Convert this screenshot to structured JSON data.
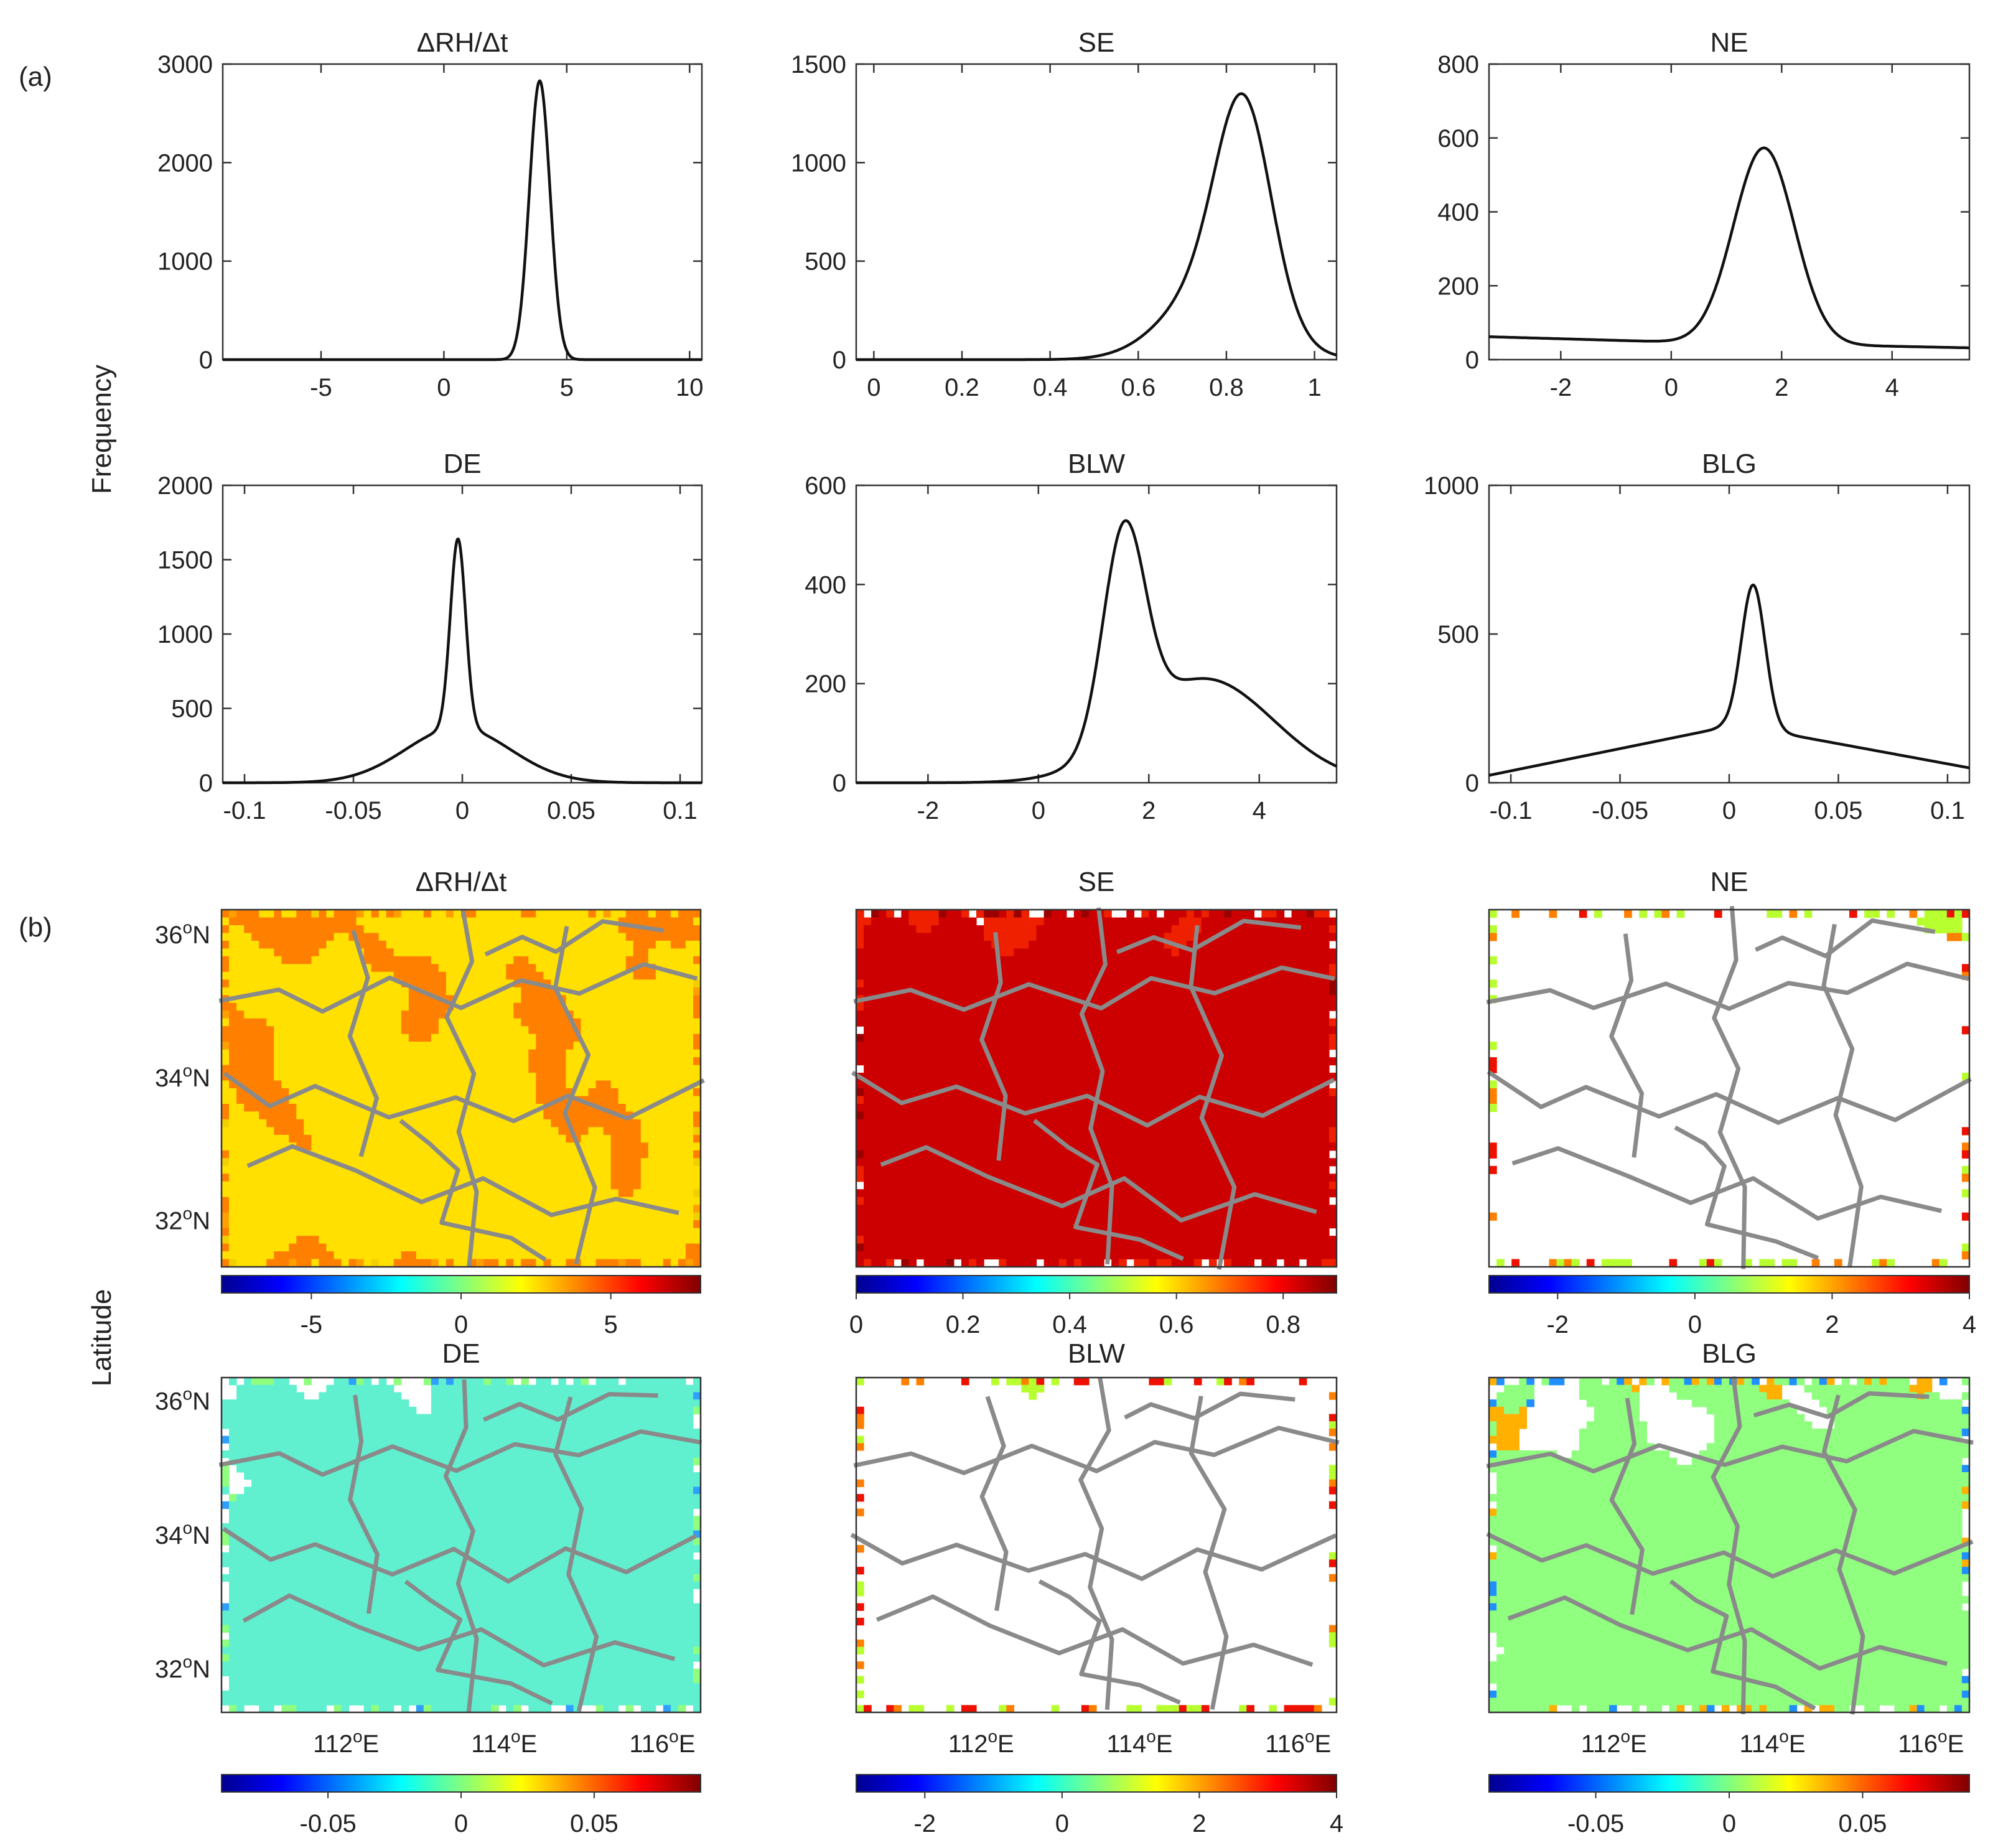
{
  "figure": {
    "panel_a_label": "(a)",
    "panel_b_label": "(b)",
    "ylabel_a": "Frequency",
    "ylabel_b": "Latitude"
  },
  "colors": {
    "line": "#111111",
    "axis": "#333333",
    "boundary": "#8a8a8a",
    "missing": "#ffffff",
    "jet": [
      "#00008f",
      "#0000ff",
      "#0080ff",
      "#00ffff",
      "#80ff80",
      "#ffff00",
      "#ff8000",
      "#ff0000",
      "#800000"
    ]
  },
  "map_ticks": {
    "lat": [
      "36",
      "34",
      "32"
    ],
    "lon": [
      "112",
      "114",
      "116"
    ],
    "deg": "o",
    "north": "N",
    "east": "E"
  },
  "chart_data": [
    {
      "id": "rh",
      "type": "line",
      "title": "ΔRH/Δt",
      "xlim": [
        -9,
        10.5
      ],
      "ylim": [
        0,
        3000
      ],
      "xticks": [
        -5,
        0,
        5,
        10
      ],
      "xticklabels": [
        "-5",
        "0",
        "5",
        "10"
      ],
      "yticks": [
        0,
        1000,
        2000,
        3000
      ],
      "yticklabels": [
        "0",
        "1000",
        "2000",
        "3000"
      ],
      "curve": {
        "base": [
          [
            -9,
            0
          ],
          [
            10.5,
            0
          ]
        ],
        "peaks": [
          {
            "mu": 3.9,
            "s": 0.42,
            "a": 2830
          }
        ]
      }
    },
    {
      "id": "se",
      "type": "line",
      "title": "SE",
      "xlim": [
        -0.04,
        1.05
      ],
      "ylim": [
        0,
        1500
      ],
      "xticks": [
        0,
        0.2,
        0.4,
        0.6,
        0.8,
        1
      ],
      "xticklabels": [
        "0",
        "0.2",
        "0.4",
        "0.6",
        "0.8",
        "1"
      ],
      "yticks": [
        0,
        500,
        1000,
        1500
      ],
      "yticklabels": [
        "0",
        "500",
        "1000",
        "1500"
      ],
      "curve": {
        "base": [
          [
            -0.04,
            0
          ],
          [
            1.05,
            0
          ]
        ],
        "peaks": [
          {
            "mu": 0.84,
            "s": 0.062,
            "a": 1000
          },
          {
            "mu": 0.78,
            "s": 0.11,
            "a": 400
          }
        ]
      }
    },
    {
      "id": "ne",
      "type": "line",
      "title": "NE",
      "xlim": [
        -3.3,
        5.4
      ],
      "ylim": [
        0,
        800
      ],
      "xticks": [
        -2,
        0,
        2,
        4
      ],
      "xticklabels": [
        "-2",
        "0",
        "2",
        "4"
      ],
      "yticks": [
        0,
        200,
        400,
        600,
        800
      ],
      "yticklabels": [
        "0",
        "200",
        "400",
        "600",
        "800"
      ],
      "curve": {
        "base": [
          [
            -3.3,
            62
          ],
          [
            0,
            48
          ],
          [
            5.4,
            32
          ]
        ],
        "peaks": [
          {
            "mu": 1.68,
            "s": 0.55,
            "a": 530
          }
        ]
      }
    },
    {
      "id": "de",
      "type": "line",
      "title": "DE",
      "xlim": [
        -0.11,
        0.11
      ],
      "ylim": [
        0,
        2000
      ],
      "xticks": [
        -0.1,
        -0.05,
        0,
        0.05,
        0.1
      ],
      "xticklabels": [
        "-0.1",
        "-0.05",
        "0",
        "0.05",
        "0.1"
      ],
      "yticks": [
        0,
        500,
        1000,
        1500,
        2000
      ],
      "yticklabels": [
        "0",
        "500",
        "1000",
        "1500",
        "2000"
      ],
      "curve": {
        "base": [
          [
            -0.11,
            0
          ],
          [
            0.11,
            0
          ]
        ],
        "peaks": [
          {
            "mu": -0.002,
            "s": 0.0035,
            "a": 1270
          },
          {
            "mu": -0.002,
            "s": 0.024,
            "a": 370
          }
        ]
      }
    },
    {
      "id": "blw",
      "type": "line",
      "title": "BLW",
      "xlim": [
        -3.3,
        5.4
      ],
      "ylim": [
        0,
        600
      ],
      "xticks": [
        -2,
        0,
        2,
        4
      ],
      "xticklabels": [
        "-2",
        "0",
        "2",
        "4"
      ],
      "yticks": [
        0,
        200,
        400,
        600
      ],
      "yticklabels": [
        "0",
        "200",
        "400",
        "600"
      ],
      "curve": {
        "base": [
          [
            -3.3,
            0
          ],
          [
            5.4,
            0
          ]
        ],
        "peaks": [
          {
            "mu": 1.55,
            "s": 0.38,
            "a": 420
          },
          {
            "mu": 3.0,
            "s": 1.25,
            "a": 210
          }
        ]
      }
    },
    {
      "id": "blg",
      "type": "line",
      "title": "BLG",
      "xlim": [
        -0.11,
        0.11
      ],
      "ylim": [
        0,
        1000
      ],
      "xticks": [
        -0.1,
        -0.05,
        0,
        0.05,
        0.1
      ],
      "xticklabels": [
        "-0.1",
        "-0.05",
        "0",
        "0.05",
        "0.1"
      ],
      "yticks": [
        0,
        500,
        1000
      ],
      "yticklabels": [
        "0",
        "500",
        "1000"
      ],
      "curve": {
        "base": [
          [
            -0.11,
            25
          ],
          [
            -0.003,
            185
          ],
          [
            0.025,
            165
          ],
          [
            0.11,
            50
          ]
        ],
        "peaks": [
          {
            "mu": 0.011,
            "s": 0.0055,
            "a": 490
          }
        ]
      }
    }
  ],
  "maps": [
    {
      "id": "m_rh",
      "type": "heatmap",
      "title": "ΔRH/Δt",
      "colorbar": {
        "min": -8,
        "max": 8,
        "ticks": [
          -5,
          0,
          5
        ],
        "ticklabels": [
          "-5",
          "0",
          "5"
        ]
      },
      "palette": [
        "#ffe000",
        "#f2d000",
        "#ff8000",
        "#ffa000"
      ],
      "bias": [
        0.46,
        0.04,
        0.44,
        0.06
      ]
    },
    {
      "id": "m_se",
      "type": "heatmap",
      "title": "SE",
      "colorbar": {
        "min": 0,
        "max": 0.9,
        "ticks": [
          0,
          0.2,
          0.4,
          0.6,
          0.8
        ],
        "ticklabels": [
          "0",
          "0.2",
          "0.4",
          "0.6",
          "0.8"
        ]
      },
      "palette": [
        "#cc0000",
        "#ee2000",
        "#ffffff",
        "#9a0000"
      ],
      "bias": [
        0.46,
        0.28,
        0.18,
        0.08
      ]
    },
    {
      "id": "m_ne",
      "type": "heatmap",
      "title": "NE",
      "colorbar": {
        "min": -3,
        "max": 4,
        "ticks": [
          -2,
          0,
          2,
          4
        ],
        "ticklabels": [
          "-2",
          "0",
          "2",
          "4"
        ]
      },
      "palette": [
        "#ffffff",
        "#b8ff30",
        "#ff8000",
        "#ee1000"
      ],
      "bias": [
        0.58,
        0.24,
        0.1,
        0.08
      ]
    },
    {
      "id": "m_de",
      "type": "heatmap",
      "title": "DE",
      "colorbar": {
        "min": -0.09,
        "max": 0.09,
        "ticks": [
          -0.05,
          0,
          0.05
        ],
        "ticklabels": [
          "-0.05",
          "0",
          "0.05"
        ]
      },
      "palette": [
        "#60f0d0",
        "#ffffff",
        "#90ff80",
        "#30a0ff"
      ],
      "bias": [
        0.5,
        0.28,
        0.14,
        0.08
      ]
    },
    {
      "id": "m_blw",
      "type": "heatmap",
      "title": "BLW",
      "colorbar": {
        "min": -3,
        "max": 4,
        "ticks": [
          -2,
          0,
          2,
          4
        ],
        "ticklabels": [
          "-2",
          "0",
          "2",
          "4"
        ]
      },
      "palette": [
        "#ffffff",
        "#ff8000",
        "#b8ff30",
        "#ee1000"
      ],
      "bias": [
        0.58,
        0.14,
        0.18,
        0.1
      ]
    },
    {
      "id": "m_blg",
      "type": "heatmap",
      "title": "BLG",
      "colorbar": {
        "min": -0.09,
        "max": 0.09,
        "ticks": [
          -0.05,
          0,
          0.05
        ],
        "ticklabels": [
          "-0.05",
          "0",
          "0.05"
        ]
      },
      "palette": [
        "#90ff80",
        "#ffffff",
        "#ffb000",
        "#2090ff"
      ],
      "bias": [
        0.4,
        0.3,
        0.18,
        0.12
      ]
    }
  ]
}
